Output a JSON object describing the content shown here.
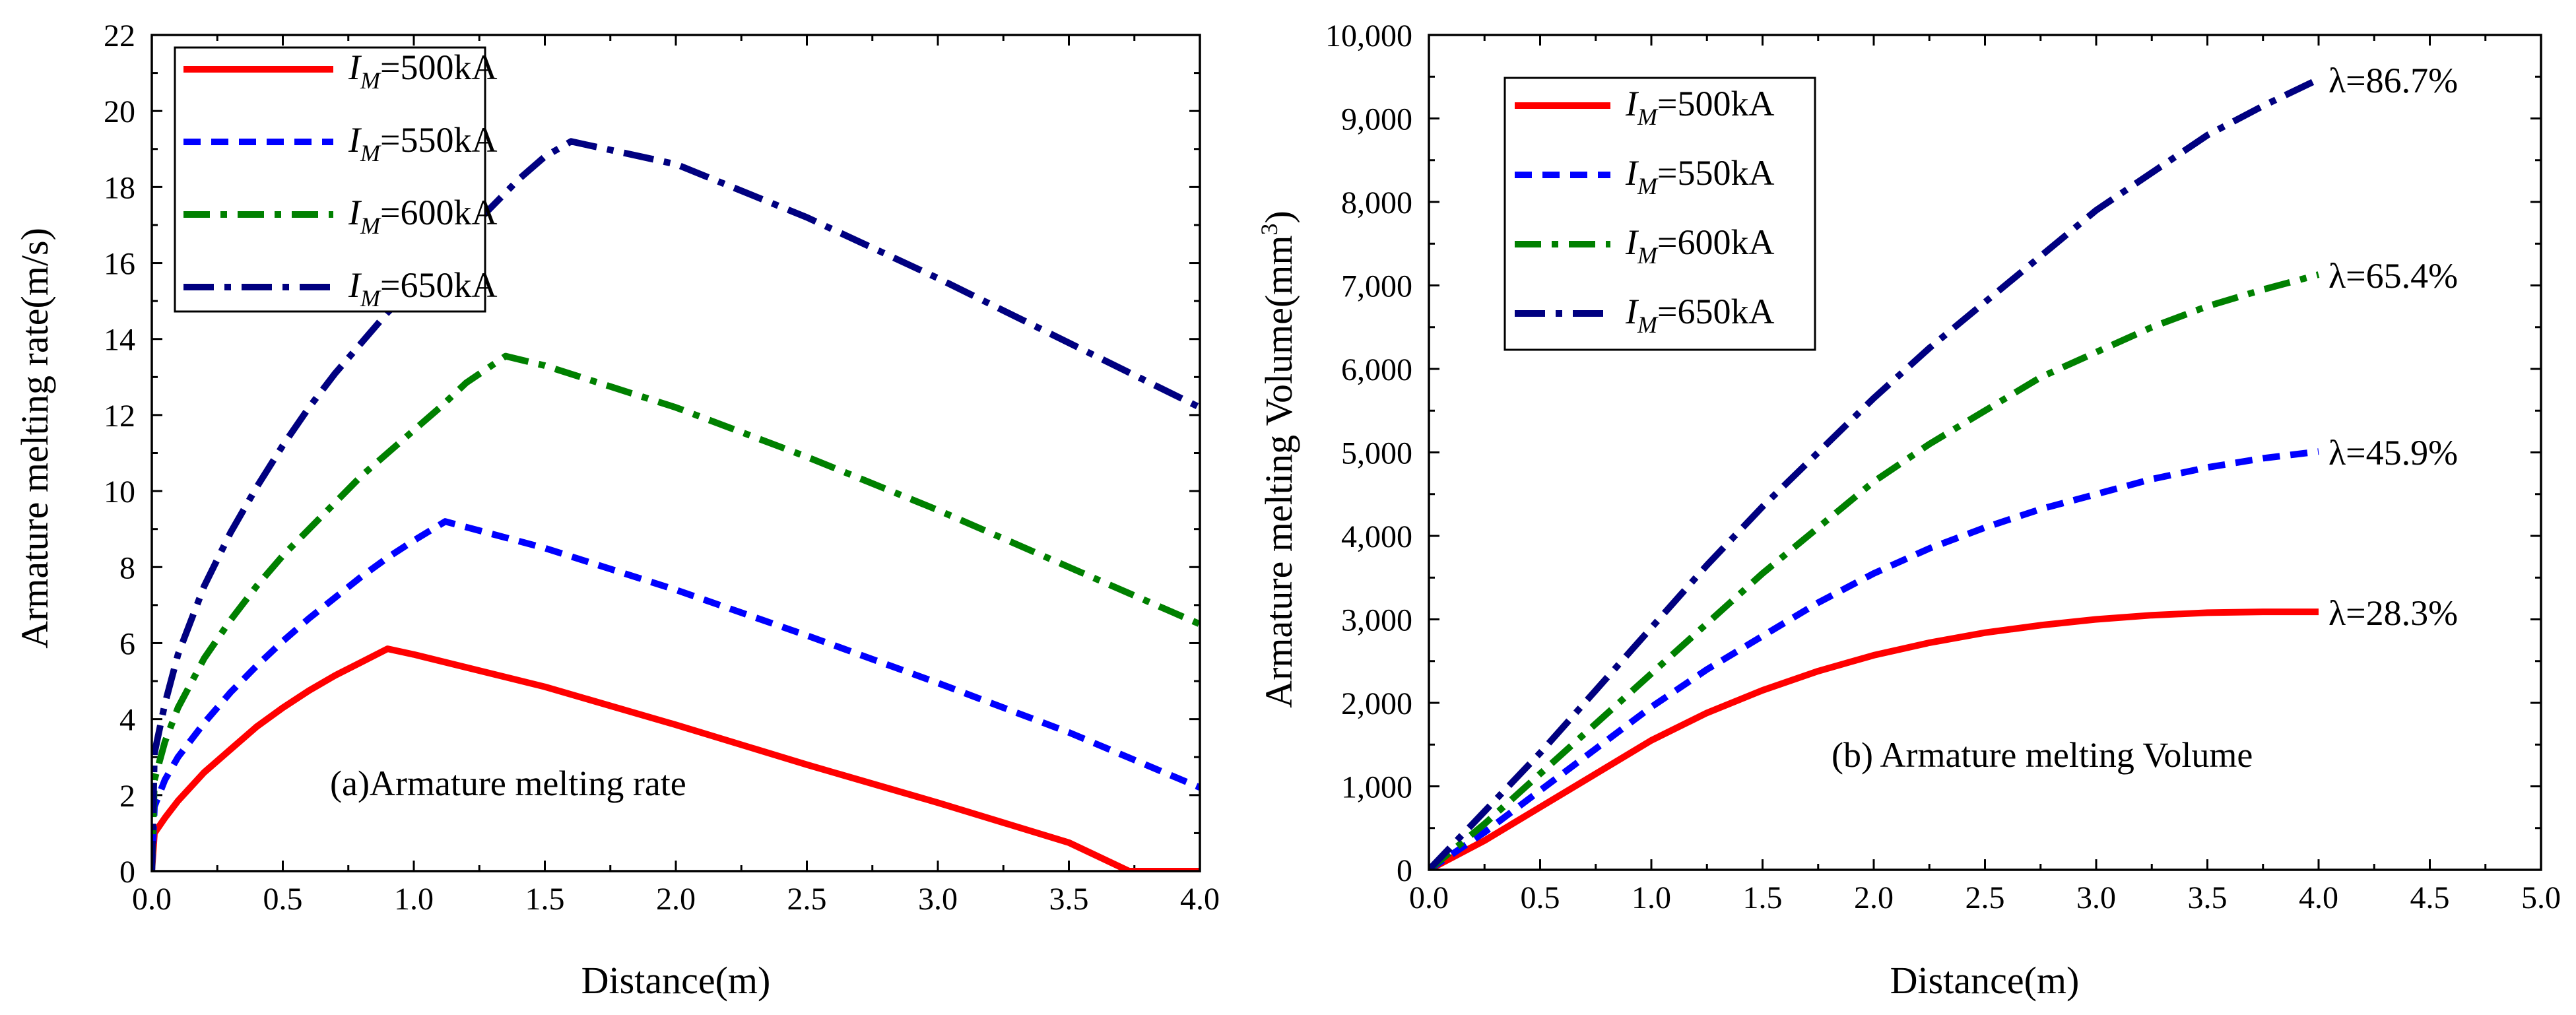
{
  "chart_data": [
    {
      "type": "line",
      "annotation": "(a)Armature melting rate",
      "xlabel": "Distance(m)",
      "ylabel": "Armature melting rate(m/s)",
      "xlim": [
        0,
        4.0
      ],
      "ylim": [
        0,
        22
      ],
      "x_ticks": [
        "0.0",
        "0.5",
        "1.0",
        "1.5",
        "2.0",
        "2.5",
        "3.0",
        "3.5",
        "4.0"
      ],
      "y_ticks": [
        "0",
        "2",
        "4",
        "6",
        "8",
        "10",
        "12",
        "14",
        "16",
        "18",
        "20",
        "22"
      ],
      "grid": false,
      "legend_position": "top-left",
      "series": [
        {
          "name": "I_M=500kA",
          "color": "#ff0000",
          "style": "solid",
          "x": [
            0,
            0.01,
            0.05,
            0.1,
            0.2,
            0.3,
            0.4,
            0.5,
            0.6,
            0.7,
            0.8,
            0.9,
            1.0,
            1.5,
            2.0,
            2.5,
            3.0,
            3.5,
            3.73,
            4.0
          ],
          "y": [
            0,
            1.0,
            1.4,
            1.85,
            2.6,
            3.2,
            3.8,
            4.3,
            4.75,
            5.15,
            5.5,
            5.85,
            5.7,
            4.85,
            3.85,
            2.8,
            1.8,
            0.75,
            0,
            0
          ]
        },
        {
          "name": "I_M=550kA",
          "color": "#0000ff",
          "style": "dashed",
          "x": [
            0,
            0.01,
            0.05,
            0.1,
            0.2,
            0.3,
            0.4,
            0.5,
            0.6,
            0.7,
            0.8,
            0.9,
            1.0,
            1.12,
            1.5,
            2.0,
            2.5,
            3.0,
            3.5,
            4.0
          ],
          "y": [
            0,
            1.7,
            2.4,
            3.0,
            3.9,
            4.7,
            5.4,
            6.05,
            6.65,
            7.2,
            7.75,
            8.25,
            8.7,
            9.2,
            8.5,
            7.4,
            6.2,
            4.95,
            3.65,
            2.2
          ]
        },
        {
          "name": "I_M=600kA",
          "color": "#008000",
          "style": "dashdot",
          "x": [
            0,
            0.01,
            0.05,
            0.1,
            0.2,
            0.3,
            0.4,
            0.5,
            0.6,
            0.7,
            0.8,
            0.9,
            1.0,
            1.1,
            1.2,
            1.35,
            1.5,
            2.0,
            2.5,
            3.0,
            3.5,
            4.0
          ],
          "y": [
            0,
            2.4,
            3.4,
            4.3,
            5.6,
            6.6,
            7.5,
            8.3,
            9.0,
            9.7,
            10.4,
            11.0,
            11.6,
            12.2,
            12.85,
            13.55,
            13.3,
            12.2,
            10.9,
            9.5,
            8.0,
            6.5
          ]
        },
        {
          "name": "I_M=650kA",
          "color": "#000080",
          "style": "dashdotted-long",
          "x": [
            0,
            0.01,
            0.05,
            0.1,
            0.2,
            0.3,
            0.4,
            0.5,
            0.6,
            0.7,
            0.8,
            0.9,
            1.0,
            1.1,
            1.2,
            1.3,
            1.4,
            1.5,
            1.6,
            2.0,
            2.5,
            3.0,
            3.5,
            4.0
          ],
          "y": [
            0,
            3.1,
            4.4,
            5.7,
            7.5,
            8.9,
            10.1,
            11.2,
            12.2,
            13.1,
            13.9,
            14.7,
            15.4,
            16.1,
            16.8,
            17.5,
            18.2,
            18.8,
            19.2,
            18.6,
            17.2,
            15.6,
            13.9,
            12.2
          ]
        }
      ]
    },
    {
      "type": "line",
      "annotation": "(b) Armature melting Volume",
      "xlabel": "Distance(m)",
      "ylabel": "Armature melting Volume(mm",
      "ylabel_superscript": "3",
      "ylabel_close": ")",
      "xlim": [
        0,
        5.0
      ],
      "ylim": [
        0,
        10000
      ],
      "x_ticks": [
        "0.0",
        "0.5",
        "1.0",
        "1.5",
        "2.0",
        "2.5",
        "3.0",
        "3.5",
        "4.0",
        "4.5",
        "5.0"
      ],
      "y_ticks": [
        "0",
        "1,000",
        "2,000",
        "3,000",
        "4,000",
        "5,000",
        "6,000",
        "7,000",
        "8,000",
        "9,000",
        "10,000"
      ],
      "grid": false,
      "legend_position": "top-left",
      "series": [
        {
          "name": "I_M=500kA",
          "color": "#ff0000",
          "style": "solid",
          "end_label": "λ=28.3%",
          "x": [
            0,
            0.25,
            0.5,
            0.75,
            1.0,
            1.25,
            1.5,
            1.75,
            2.0,
            2.25,
            2.5,
            2.75,
            3.0,
            3.25,
            3.5,
            3.75,
            4.0
          ],
          "y": [
            0,
            350,
            750,
            1150,
            1550,
            1880,
            2150,
            2380,
            2570,
            2720,
            2840,
            2930,
            3000,
            3050,
            3080,
            3090,
            3090
          ]
        },
        {
          "name": "I_M=550kA",
          "color": "#0000ff",
          "style": "dashed",
          "end_label": "λ=45.9%",
          "x": [
            0,
            0.25,
            0.5,
            0.75,
            1.0,
            1.25,
            1.5,
            1.75,
            2.0,
            2.25,
            2.5,
            2.75,
            3.0,
            3.25,
            3.5,
            3.75,
            4.0
          ],
          "y": [
            0,
            450,
            950,
            1450,
            1950,
            2400,
            2800,
            3200,
            3550,
            3850,
            4100,
            4320,
            4500,
            4680,
            4820,
            4930,
            5010
          ]
        },
        {
          "name": "I_M=600kA",
          "color": "#008000",
          "style": "dashdot",
          "end_label": "λ=65.4%",
          "x": [
            0,
            0.25,
            0.5,
            0.75,
            1.0,
            1.25,
            1.5,
            1.75,
            2.0,
            2.25,
            2.5,
            2.75,
            3.0,
            3.25,
            3.5,
            3.75,
            4.0
          ],
          "y": [
            0,
            550,
            1150,
            1750,
            2350,
            2950,
            3550,
            4100,
            4650,
            5100,
            5500,
            5900,
            6200,
            6500,
            6750,
            6950,
            7130
          ]
        },
        {
          "name": "I_M=650kA",
          "color": "#000080",
          "style": "dashdotted-long",
          "end_label": "λ=86.7%",
          "x": [
            0,
            0.25,
            0.5,
            0.75,
            1.0,
            1.25,
            1.5,
            1.75,
            2.0,
            2.25,
            2.5,
            2.75,
            3.0,
            3.25,
            3.5,
            3.75,
            4.0
          ],
          "y": [
            0,
            700,
            1400,
            2150,
            2900,
            3650,
            4350,
            5000,
            5650,
            6250,
            6800,
            7350,
            7900,
            8350,
            8800,
            9150,
            9470
          ]
        }
      ]
    }
  ]
}
